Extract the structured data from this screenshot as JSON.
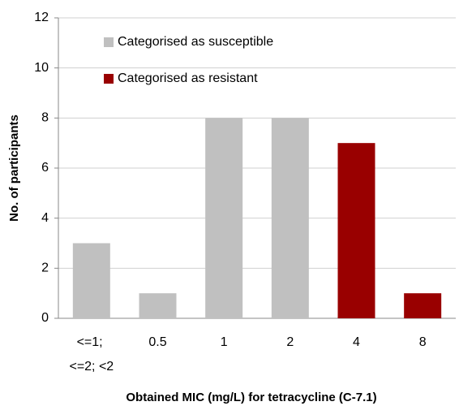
{
  "chart_data": {
    "type": "bar",
    "categories": [
      "<=1; <=2; <2",
      "0.5",
      "1",
      "2",
      "4",
      "8"
    ],
    "series": [
      {
        "name": "Categorised as susceptible",
        "color": "#c0c0c0",
        "values": [
          3,
          1,
          8,
          8,
          null,
          null
        ]
      },
      {
        "name": "Categorised as resistant",
        "color": "#990000",
        "values": [
          null,
          null,
          null,
          null,
          7,
          1
        ]
      }
    ],
    "xlabel": "Obtained MIC (mg/L) for tetracycline (C-7.1)",
    "ylabel": "No. of participants",
    "ylim": [
      0,
      12
    ],
    "yticks": [
      0,
      2,
      4,
      6,
      8,
      10,
      12
    ],
    "grid": true
  }
}
